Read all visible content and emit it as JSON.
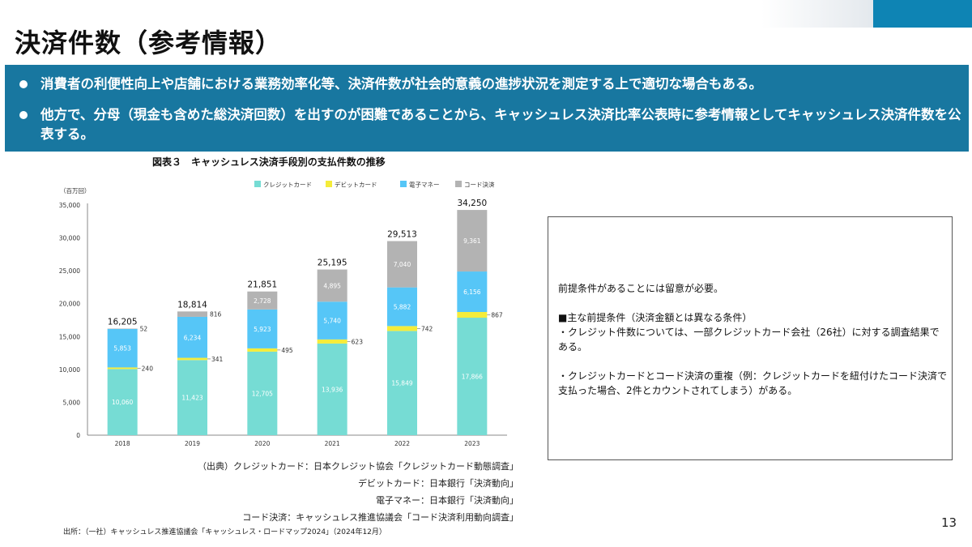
{
  "page": {
    "title": "決済件数（参考情報）",
    "page_number": "13",
    "bullets": [
      "消費者の利便性向上や店舗における業務効率化等、決済件数が社会的意義の進捗状況を測定する上で適切な場合もある。",
      "他方で、分母（現金も含めた総決済回数）を出すのが困難であることから、キャッシュレス決済比率公表時に参考情報としてキャッシュレス決済件数を公表する。"
    ],
    "figure_title": "図表３　キャッシュレス決済手段別の支払件数の推移",
    "sources": [
      "（出典）クレジットカード：日本クレジット協会「クレジットカード動態調査」",
      "デビットカード：日本銀行「決済動向」",
      "電子マネー：日本銀行「決済動向」",
      "コード決済：キャッシュレス推進協議会「コード決済利用動向調査」"
    ],
    "footnote": "出所：（一社）キャッシュレス推進協議会「キャッシュレス・ロードマップ2024」（2024年12月）",
    "note_box": [
      "前提条件があることには留意が必要。",
      "■主な前提条件（決済金額とは異なる条件）",
      "・クレジット件数については、一部クレジットカード会社（26社）に対する調査結果である。",
      "・クレジットカードとコード決済の重複（例：クレジットカードを紐付けたコード決済で支払った場合、2件とカウントされてしまう）がある。"
    ]
  },
  "chart_data": {
    "type": "bar",
    "stacked": true,
    "unit_label": "（百万回）",
    "categories": [
      "2018",
      "2019",
      "2020",
      "2021",
      "2022",
      "2023"
    ],
    "series": [
      {
        "name": "クレジットカード",
        "color": "#76dcd4",
        "values": [
          10060,
          11423,
          12705,
          13936,
          15849,
          17866
        ]
      },
      {
        "name": "デビットカード",
        "color": "#f5ec3a",
        "values": [
          240,
          341,
          495,
          623,
          742,
          867
        ]
      },
      {
        "name": "電子マネー",
        "color": "#56c6f7",
        "values": [
          5853,
          6234,
          5923,
          5740,
          5882,
          6156
        ]
      },
      {
        "name": "コード決済",
        "color": "#b3b3b3",
        "values": [
          52,
          816,
          2728,
          4895,
          7040,
          9361
        ]
      }
    ],
    "value_labels": [
      [
        "10,060",
        "11,423",
        "12,705",
        "13,936",
        "15,849",
        "17,866"
      ],
      [
        "240",
        "341",
        "495",
        "623",
        "742",
        "867"
      ],
      [
        "5,853",
        "6,234",
        "5,923",
        "5,740",
        "5,882",
        "6,156"
      ],
      [
        "52",
        "816",
        "2,728",
        "4,895",
        "7,040",
        "9,361"
      ]
    ],
    "totals": [
      16205,
      18814,
      21851,
      25195,
      29513,
      34250
    ],
    "total_labels": [
      "16,205",
      "18,814",
      "21,851",
      "25,195",
      "29,513",
      "34,250"
    ],
    "ylim": [
      0,
      35000
    ],
    "yticks": [
      0,
      5000,
      10000,
      15000,
      20000,
      25000,
      30000,
      35000
    ],
    "ytick_labels": [
      "0",
      "5,000",
      "10,000",
      "15,000",
      "20,000",
      "25,000",
      "30,000",
      "35,000"
    ],
    "legend_position": "top",
    "grid": false
  }
}
